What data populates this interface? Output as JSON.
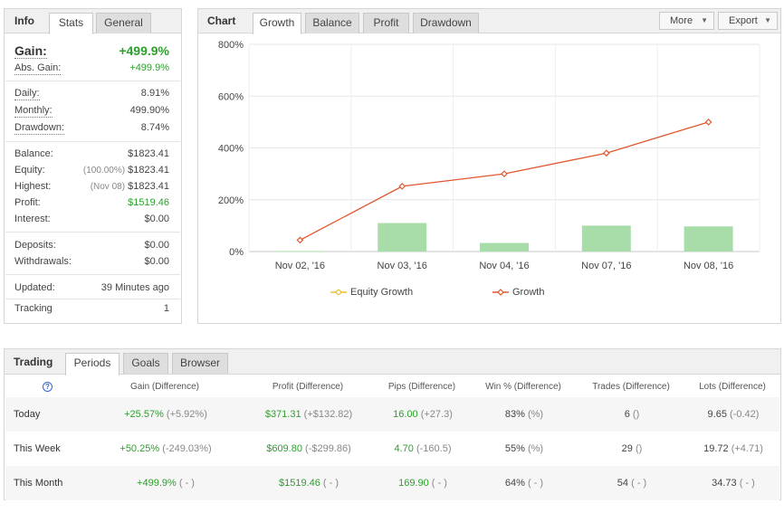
{
  "info": {
    "tabs": [
      "Info",
      "Stats",
      "General"
    ],
    "gain": {
      "label": "Gain:",
      "value": "+499.9%"
    },
    "abs_gain": {
      "label": "Abs. Gain:",
      "value": "+499.9%"
    },
    "daily": {
      "label": "Daily:",
      "value": "8.91%"
    },
    "monthly": {
      "label": "Monthly:",
      "value": "499.90%"
    },
    "drawdown": {
      "label": "Drawdown:",
      "value": "8.74%"
    },
    "balance": {
      "label": "Balance:",
      "value": "$1823.41"
    },
    "equity": {
      "label": "Equity:",
      "sub": "(100.00%)",
      "value": "$1823.41"
    },
    "highest": {
      "label": "Highest:",
      "sub": "(Nov 08)",
      "value": "$1823.41"
    },
    "profit": {
      "label": "Profit:",
      "value": "$1519.46"
    },
    "interest": {
      "label": "Interest:",
      "value": "$0.00"
    },
    "deposits": {
      "label": "Deposits:",
      "value": "$0.00"
    },
    "withdrawals": {
      "label": "Withdrawals:",
      "value": "$0.00"
    },
    "updated": {
      "label": "Updated:",
      "value": "39 Minutes ago"
    },
    "tracking": {
      "label": "Tracking",
      "value": "1"
    }
  },
  "chart_panel": {
    "title": "Chart",
    "tabs": [
      "Growth",
      "Balance",
      "Profit",
      "Drawdown"
    ],
    "more_label": "More",
    "export_label": "Export",
    "caret_glyph": "▼"
  },
  "chart_data": {
    "type": "line",
    "categories": [
      "Nov 02, '16",
      "Nov 03, '16",
      "Nov 04, '16",
      "Nov 07, '16",
      "Nov 08, '16"
    ],
    "yticks": [
      "0%",
      "200%",
      "400%",
      "600%",
      "800%"
    ],
    "ylim": [
      0,
      800
    ],
    "grid": true,
    "legend_position": "bottom",
    "series": [
      {
        "name": "Equity Growth",
        "type": "bar",
        "color": "#a8dca8",
        "values": [
          2,
          110,
          33,
          100,
          97
        ]
      },
      {
        "name": "Growth",
        "type": "line",
        "color": "#e0572e",
        "values": [
          44,
          252,
          300,
          380,
          500
        ]
      }
    ],
    "legend_colors": {
      "equity": "#e8c030",
      "growth": "#e0572e"
    }
  },
  "trading": {
    "title": "Trading",
    "tabs": [
      "Periods",
      "Goals",
      "Browser"
    ],
    "help_glyph": "?",
    "headers": [
      "Gain (Difference)",
      "Profit (Difference)",
      "Pips (Difference)",
      "Win % (Difference)",
      "Trades (Difference)",
      "Lots (Difference)"
    ],
    "rows": [
      {
        "label": "Today",
        "gain": "+25.57%",
        "gain_diff": "(+5.92%)",
        "profit": "$371.31",
        "profit_diff": "(+$132.82)",
        "pips": "16.00",
        "pips_diff": "(+27.3)",
        "win": "83%",
        "win_diff": "(%)",
        "trades": "6",
        "trades_diff": "()",
        "lots": "9.65",
        "lots_diff": "(-0.42)"
      },
      {
        "label": "This Week",
        "gain": "+50.25%",
        "gain_diff": "(-249.03%)",
        "profit": "$609.80",
        "profit_diff": "(-$299.86)",
        "pips": "4.70",
        "pips_diff": "(-160.5)",
        "win": "55%",
        "win_diff": "(%)",
        "trades": "29",
        "trades_diff": "()",
        "lots": "19.72",
        "lots_diff": "(+4.71)"
      },
      {
        "label": "This Month",
        "gain": "+499.9%",
        "gain_diff": "( - )",
        "profit": "$1519.46",
        "profit_diff": "( - )",
        "pips": "169.90",
        "pips_diff": "( - )",
        "win": "64%",
        "win_diff": "( - )",
        "trades": "54",
        "trades_diff": "( - )",
        "lots": "34.73",
        "lots_diff": "( - )"
      }
    ]
  },
  "colors": {
    "positive": "#2ca02c",
    "border": "#d6d6d6",
    "tab_bg": "#f0f0f0"
  }
}
